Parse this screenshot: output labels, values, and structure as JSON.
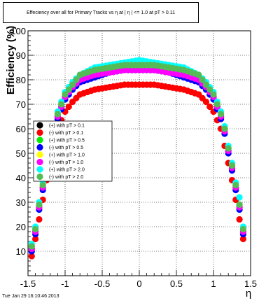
{
  "chart_data": {
    "type": "scatter",
    "title": "Effeciency over all for Primary Tracks vs  η at |  η | <= 1.0 at pT > 0.11",
    "xlabel": "η",
    "ylabel": "Efficiency (%)",
    "xlim": [
      -1.5,
      1.5
    ],
    "ylim": [
      0,
      100
    ],
    "xticks": [
      "-1.5",
      "-1",
      "-0.5",
      "0",
      "0.5",
      "1",
      "1.5"
    ],
    "yticks": [
      "10",
      "20",
      "30",
      "40",
      "50",
      "60",
      "70",
      "80",
      "90",
      "100"
    ],
    "grid": true,
    "legend_position": "left-middle",
    "series": [
      {
        "name": "(+) with pT > 0.1",
        "color": "#000000",
        "plateau": 84,
        "x": [
          -1.45,
          -1.4,
          -1.35,
          -1.3,
          -1.25,
          -1.2,
          -1.15,
          -1.1,
          -1.0,
          -0.9,
          -0.8,
          -0.6,
          -0.4,
          -0.2,
          0.0,
          0.2,
          0.4,
          0.6,
          0.8,
          0.9,
          1.0,
          1.1,
          1.15,
          1.2,
          1.25,
          1.3,
          1.35,
          1.4,
          1.45
        ],
        "y": [
          11,
          18,
          28,
          36,
          44,
          51,
          59,
          65,
          73,
          77,
          80,
          82,
          83,
          84,
          84,
          84,
          83,
          82,
          80,
          77,
          73,
          65,
          59,
          51,
          44,
          36,
          28,
          18,
          11
        ]
      },
      {
        "name": "(-) with pT > 0.1",
        "color": "#ff0000",
        "plateau": 78,
        "x": [
          -1.45,
          -1.4,
          -1.35,
          -1.3,
          -1.25,
          -1.2,
          -1.15,
          -1.1,
          -1.0,
          -0.9,
          -0.8,
          -0.6,
          -0.4,
          -0.2,
          0.0,
          0.2,
          0.4,
          0.6,
          0.8,
          0.9,
          1.0,
          1.1,
          1.15,
          1.2,
          1.25,
          1.3,
          1.35,
          1.4,
          1.45
        ],
        "y": [
          8,
          15,
          23,
          31,
          39,
          46,
          53,
          60,
          67,
          71,
          74,
          76,
          77,
          78,
          78,
          78,
          77,
          76,
          74,
          71,
          67,
          60,
          53,
          46,
          39,
          31,
          23,
          15,
          9
        ]
      },
      {
        "name": "(+) with pT > 0.5",
        "color": "#00ee00",
        "plateau": 85,
        "x": [
          -1.45,
          -1.4,
          -1.35,
          -1.3,
          -1.25,
          -1.2,
          -1.15,
          -1.1,
          -1.0,
          -0.9,
          -0.8,
          -0.6,
          -0.4,
          -0.2,
          0.0,
          0.2,
          0.4,
          0.6,
          0.8,
          0.9,
          1.0,
          1.1,
          1.15,
          1.2,
          1.25,
          1.3,
          1.35,
          1.4,
          1.45
        ],
        "y": [
          12,
          19,
          29,
          37,
          45,
          52,
          60,
          66,
          74,
          78,
          81,
          83,
          84,
          85,
          85,
          85,
          84,
          83,
          81,
          78,
          74,
          66,
          60,
          52,
          45,
          37,
          29,
          19,
          12
        ]
      },
      {
        "name": "(-) with pT > 0.5",
        "color": "#0000ff",
        "plateau": 84,
        "x": [
          -1.45,
          -1.4,
          -1.35,
          -1.3,
          -1.25,
          -1.2,
          -1.15,
          -1.1,
          -1.0,
          -0.9,
          -0.8,
          -0.6,
          -0.4,
          -0.2,
          0.0,
          0.2,
          0.4,
          0.6,
          0.8,
          0.9,
          1.0,
          1.1,
          1.15,
          1.2,
          1.25,
          1.3,
          1.35,
          1.4,
          1.45
        ],
        "y": [
          10,
          17,
          27,
          35,
          43,
          50,
          58,
          64,
          72,
          76,
          79,
          81,
          83,
          84,
          84,
          84,
          83,
          81,
          79,
          76,
          72,
          64,
          58,
          50,
          43,
          35,
          27,
          17,
          10
        ]
      },
      {
        "name": "(+) with pT > 1.0",
        "color": "#ffff00",
        "plateau": 85,
        "x": [
          -1.45,
          -1.4,
          -1.35,
          -1.3,
          -1.25,
          -1.2,
          -1.15,
          -1.1,
          -1.0,
          -0.9,
          -0.8,
          -0.6,
          -0.4,
          -0.2,
          0.0,
          0.2,
          0.4,
          0.6,
          0.8,
          0.9,
          1.0,
          1.1,
          1.15,
          1.2,
          1.25,
          1.3,
          1.35,
          1.4,
          1.45
        ],
        "y": [
          11,
          18,
          28,
          37,
          45,
          52,
          59,
          66,
          74,
          78,
          81,
          83,
          84,
          85,
          85,
          85,
          84,
          83,
          81,
          78,
          74,
          66,
          59,
          52,
          45,
          37,
          28,
          18,
          11
        ]
      },
      {
        "name": "(-) with pT > 1.0",
        "color": "#ff00ff",
        "plateau": 84,
        "x": [
          -1.45,
          -1.4,
          -1.35,
          -1.3,
          -1.25,
          -1.2,
          -1.15,
          -1.1,
          -1.0,
          -0.9,
          -0.8,
          -0.6,
          -0.4,
          -0.2,
          0.0,
          0.2,
          0.4,
          0.6,
          0.8,
          0.9,
          1.0,
          1.1,
          1.15,
          1.2,
          1.25,
          1.3,
          1.35,
          1.4,
          1.45
        ],
        "y": [
          11,
          18,
          28,
          36,
          44,
          51,
          59,
          65,
          73,
          77,
          80,
          82,
          83,
          84,
          84,
          84,
          83,
          82,
          80,
          77,
          73,
          65,
          59,
          51,
          44,
          36,
          28,
          18,
          11
        ]
      },
      {
        "name": "(+) with pT > 2.0",
        "color": "#00ffff",
        "plateau": 88,
        "x": [
          -1.45,
          -1.4,
          -1.35,
          -1.3,
          -1.25,
          -1.2,
          -1.15,
          -1.1,
          -1.0,
          -0.9,
          -0.8,
          -0.6,
          -0.4,
          -0.2,
          0.0,
          0.2,
          0.4,
          0.6,
          0.8,
          0.9,
          1.0,
          1.1,
          1.15,
          1.2,
          1.25,
          1.3,
          1.35,
          1.4,
          1.45
        ],
        "y": [
          13,
          20,
          30,
          38,
          46,
          53,
          61,
          67,
          75,
          79,
          82,
          85,
          86,
          87,
          88,
          87,
          86,
          85,
          82,
          79,
          75,
          67,
          61,
          53,
          46,
          38,
          32,
          20,
          14
        ]
      },
      {
        "name": "(-) with pT > 2.0",
        "color": "#55bb55",
        "plateau": 86,
        "x": [
          -1.45,
          -1.4,
          -1.35,
          -1.3,
          -1.25,
          -1.2,
          -1.15,
          -1.1,
          -1.0,
          -0.9,
          -0.8,
          -0.6,
          -0.4,
          -0.2,
          0.0,
          0.2,
          0.4,
          0.6,
          0.8,
          0.9,
          1.0,
          1.1,
          1.15,
          1.2,
          1.25,
          1.3,
          1.35,
          1.4,
          1.45
        ],
        "y": [
          12,
          19,
          29,
          37,
          45,
          52,
          60,
          66,
          74,
          78,
          82,
          84,
          85,
          86,
          86,
          86,
          85,
          84,
          82,
          78,
          74,
          66,
          60,
          52,
          45,
          37,
          29,
          19,
          12
        ]
      }
    ]
  },
  "footer": {
    "timestamp": "Tue Jan 29 16:10:46 2013"
  }
}
